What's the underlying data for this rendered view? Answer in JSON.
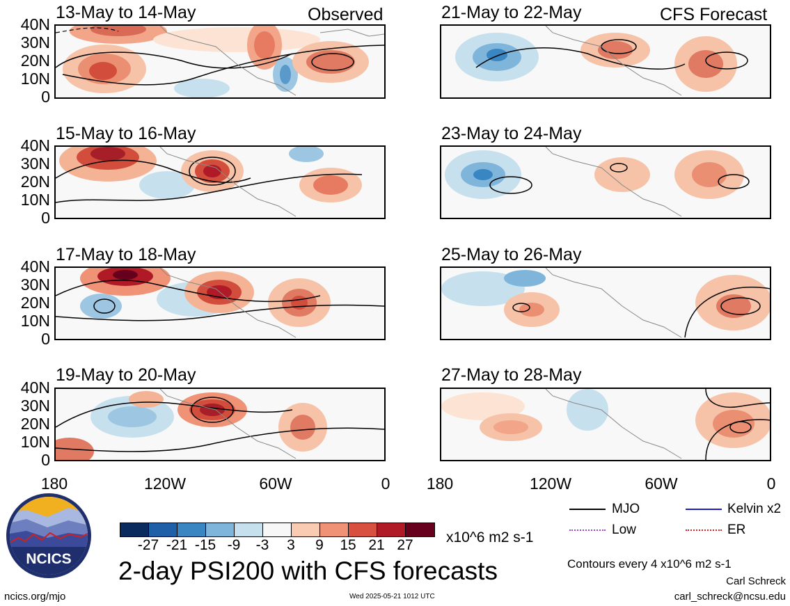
{
  "header": {
    "observed_label": "Observed",
    "forecast_label": "CFS Forecast"
  },
  "panels": [
    {
      "title": "13-May to 14-May"
    },
    {
      "title": "15-May to 16-May"
    },
    {
      "title": "17-May to 18-May"
    },
    {
      "title": "19-May to 20-May"
    },
    {
      "title": "21-May to 22-May"
    },
    {
      "title": "23-May to 24-May"
    },
    {
      "title": "25-May to 26-May"
    },
    {
      "title": "27-May to 28-May"
    }
  ],
  "axes": {
    "lat_ticks": [
      "40N",
      "30N",
      "20N",
      "10N",
      "0"
    ],
    "lon_ticks": [
      "180",
      "120W",
      "60W",
      "0"
    ]
  },
  "colorbar": {
    "labels": [
      "-27",
      "-21",
      "-15",
      "-9",
      "-3",
      "3",
      "9",
      "15",
      "21",
      "27"
    ],
    "colors": [
      "#0b2b5e",
      "#1f5fa8",
      "#3a86c3",
      "#7fb5da",
      "#c7e0ee",
      "#f7f7f7",
      "#f9cbb2",
      "#ef9276",
      "#d8503f",
      "#b01a27",
      "#67001c"
    ],
    "units": "x10^6 m2 s-1"
  },
  "legend": {
    "items": [
      {
        "label": "MJO",
        "color": "#000000"
      },
      {
        "label": "Kelvin x2",
        "color": "#1a1acc"
      },
      {
        "label": "Low",
        "color": "#a040d0"
      },
      {
        "label": "ER",
        "color": "#d02020"
      }
    ],
    "contour_note": "Contours every 4 x10^6 m2 s-1"
  },
  "footer": {
    "title": "2-day PSI200 with CFS forecasts",
    "logo_text": "NCICS",
    "url": "ncics.org/mjo",
    "timestamp": "Wed 2025-05-21 1012 UTC",
    "author": "Carl Schreck",
    "email": "carl_schreck@ncsu.edu"
  },
  "chart_data": {
    "type": "heatmap",
    "variable": "PSI200",
    "units": "x10^6 m2 s-1",
    "lon_range": [
      "180",
      "0"
    ],
    "lat_range": [
      "0",
      "40N"
    ],
    "panels": [
      {
        "title": "13-May to 14-May",
        "source": "Observed"
      },
      {
        "title": "15-May to 16-May",
        "source": "Observed"
      },
      {
        "title": "17-May to 18-May",
        "source": "Observed"
      },
      {
        "title": "19-May to 20-May",
        "source": "Observed"
      },
      {
        "title": "21-May to 22-May",
        "source": "CFS Forecast"
      },
      {
        "title": "23-May to 24-May",
        "source": "CFS Forecast"
      },
      {
        "title": "25-May to 26-May",
        "source": "CFS Forecast"
      },
      {
        "title": "27-May to 28-May",
        "source": "CFS Forecast"
      }
    ]
  }
}
